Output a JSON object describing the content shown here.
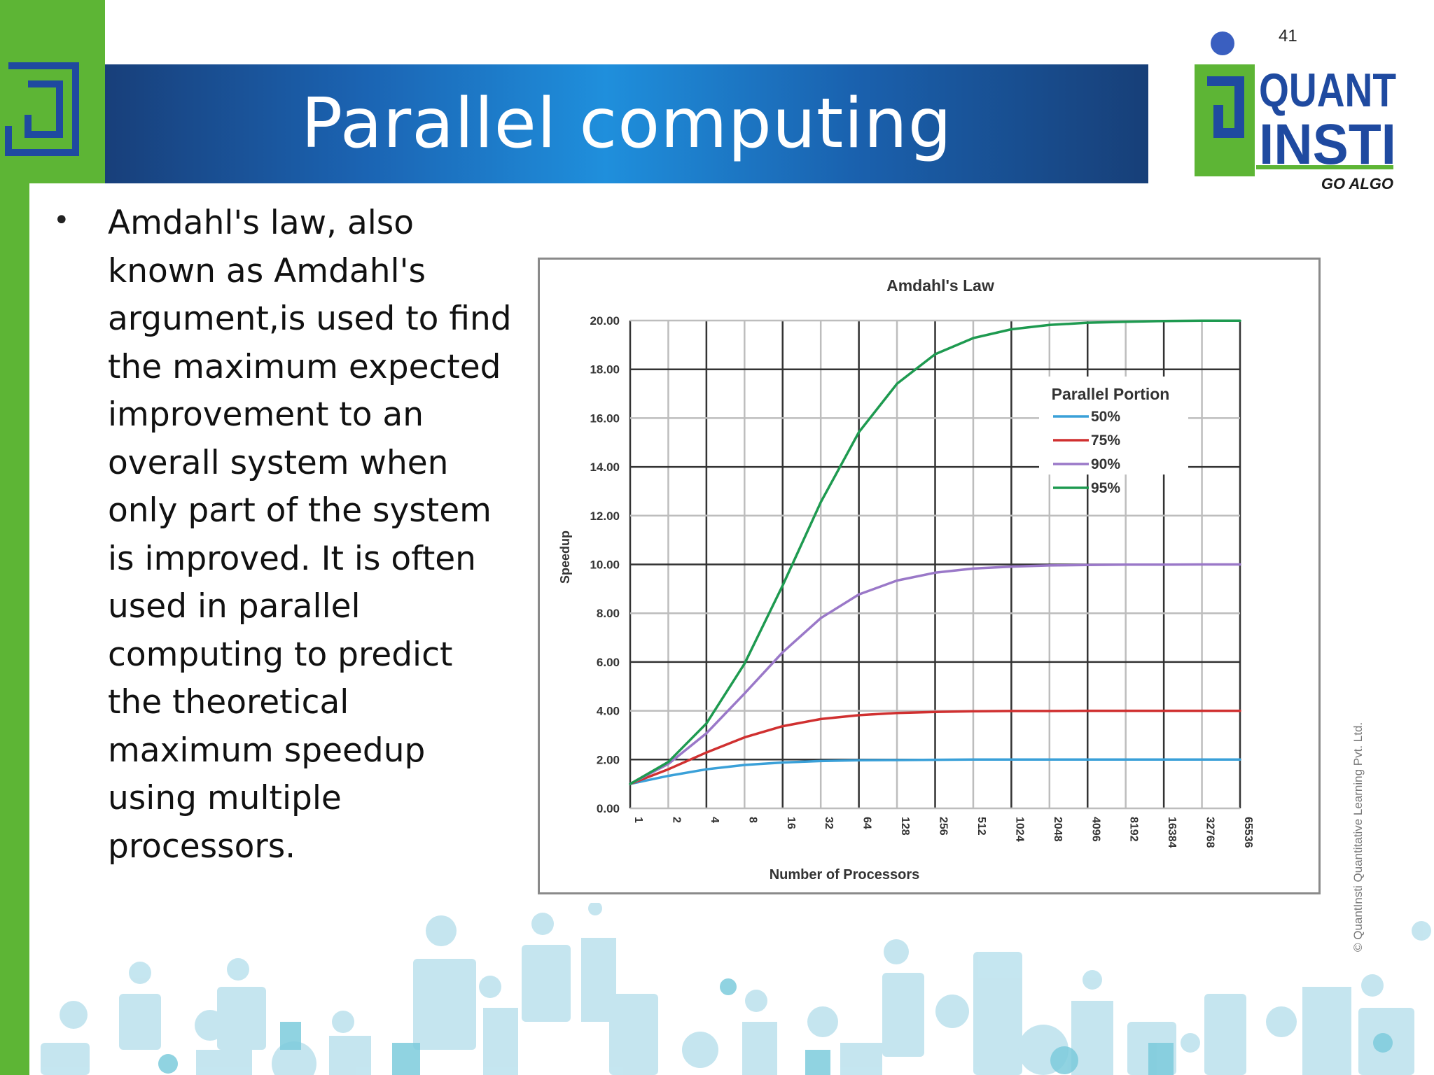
{
  "slide": {
    "number": "41",
    "title": "Parallel computing",
    "bullet": "Amdahl's law, also known as Amdahl's argument,is used to find the maximum expected improvement to an overall system when only part of the system is improved. It is often used in parallel computing to predict the theoretical maximum speedup using multiple processors.",
    "copyright": "© QuantInsti Quantitative Learning Pvt. Ltd."
  },
  "logo": {
    "line1": "QUANT",
    "line2": "INSTI",
    "tagline": "GO ALGO"
  },
  "colors": {
    "green": "#5db535",
    "blue_dark": "#183f7a",
    "blue_light": "#1f8fdc",
    "logo_blue": "#1f4aa0",
    "logo_dot": "#3a5fc0"
  },
  "chart_data": {
    "type": "line",
    "title": "Amdahl's Law",
    "xlabel": "Number of Processors",
    "ylabel": "Speedup",
    "x_scale": "log2",
    "categories": [
      "1",
      "2",
      "4",
      "8",
      "16",
      "32",
      "64",
      "128",
      "256",
      "512",
      "1024",
      "2048",
      "4096",
      "8192",
      "16384",
      "32768",
      "65536"
    ],
    "ylim": [
      0,
      20
    ],
    "yticks": [
      "0.00",
      "2.00",
      "4.00",
      "6.00",
      "8.00",
      "10.00",
      "12.00",
      "14.00",
      "16.00",
      "18.00",
      "20.00"
    ],
    "grid": true,
    "legend_title": "Parallel Portion",
    "legend_position": "top-right",
    "series": [
      {
        "name": "50%",
        "color": "#3aa0d8",
        "values": [
          1.0,
          1.33,
          1.6,
          1.78,
          1.88,
          1.94,
          1.97,
          1.98,
          1.99,
          2.0,
          2.0,
          2.0,
          2.0,
          2.0,
          2.0,
          2.0,
          2.0
        ]
      },
      {
        "name": "75%",
        "color": "#d03030",
        "values": [
          1.0,
          1.6,
          2.29,
          2.91,
          3.37,
          3.66,
          3.82,
          3.91,
          3.95,
          3.98,
          3.99,
          3.99,
          4.0,
          4.0,
          4.0,
          4.0,
          4.0
        ]
      },
      {
        "name": "90%",
        "color": "#9a78c8",
        "values": [
          1.0,
          1.82,
          3.08,
          4.71,
          6.4,
          7.8,
          8.77,
          9.34,
          9.66,
          9.83,
          9.91,
          9.96,
          9.98,
          9.99,
          9.99,
          10.0,
          10.0
        ]
      },
      {
        "name": "95%",
        "color": "#1e9a50",
        "values": [
          1.0,
          1.9,
          3.48,
          5.93,
          9.14,
          12.55,
          15.42,
          17.41,
          18.62,
          19.28,
          19.64,
          19.82,
          19.91,
          19.95,
          19.98,
          19.99,
          19.99
        ]
      }
    ]
  }
}
